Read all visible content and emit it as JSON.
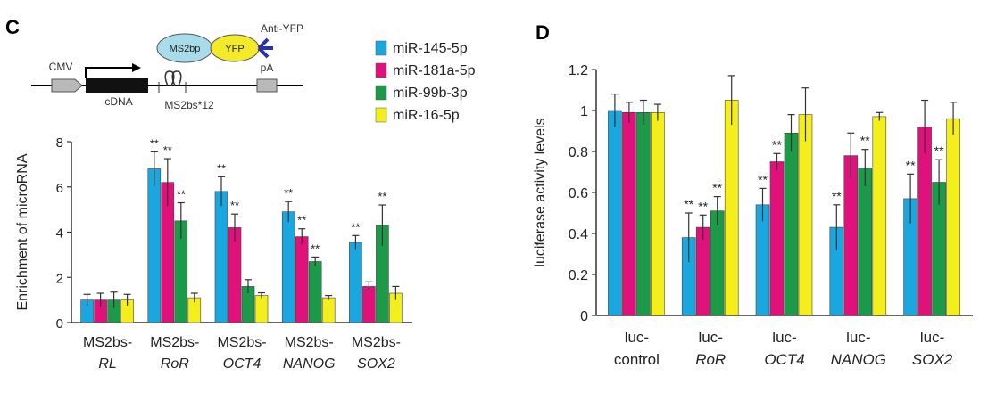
{
  "colors": {
    "series": [
      "#1aa7e0",
      "#e0117a",
      "#1c9a49",
      "#f4ef1a"
    ],
    "axis": "#333333"
  },
  "construct": {
    "cmv": "CMV",
    "cdna": "cDNA",
    "ms2bs": "MS2bs*12",
    "pa": "pA",
    "ms2bp": "MS2bp",
    "yfp": "YFP",
    "anti_yfp": "Anti-YFP"
  },
  "chart_data": [
    {
      "panel": "C",
      "type": "bar",
      "ylabel": "Enrichment of microRNA",
      "ylim": [
        0,
        8
      ],
      "yticks": [
        0,
        2,
        4,
        6,
        8
      ],
      "categories": [
        {
          "line1": "MS2bs-",
          "line2": "RL"
        },
        {
          "line1": "MS2bs-",
          "line2": "RoR"
        },
        {
          "line1": "MS2bs-",
          "line2": "OCT4"
        },
        {
          "line1": "MS2bs-",
          "line2": "NANOG"
        },
        {
          "line1": "MS2bs-",
          "line2": "SOX2"
        }
      ],
      "series": [
        {
          "name": "miR-145-5p",
          "values": [
            1.0,
            6.8,
            5.8,
            4.9,
            3.55
          ],
          "errors": [
            0.25,
            0.75,
            0.65,
            0.45,
            0.3
          ],
          "sig": [
            "",
            "**",
            "**",
            "**",
            "**"
          ]
        },
        {
          "name": "miR-181a-5p",
          "values": [
            1.0,
            6.2,
            4.2,
            3.8,
            1.6
          ],
          "errors": [
            0.3,
            1.05,
            0.6,
            0.35,
            0.2
          ],
          "sig": [
            "",
            "**",
            "**",
            "**",
            ""
          ]
        },
        {
          "name": "miR-99b-3p",
          "values": [
            1.0,
            4.5,
            1.6,
            2.7,
            4.3
          ],
          "errors": [
            0.35,
            0.8,
            0.3,
            0.2,
            0.9
          ],
          "sig": [
            "",
            "**",
            "",
            "**",
            "**"
          ]
        },
        {
          "name": "miR-16-5p",
          "values": [
            1.0,
            1.1,
            1.2,
            1.1,
            1.3
          ],
          "errors": [
            0.25,
            0.2,
            0.12,
            0.1,
            0.3
          ],
          "sig": [
            "",
            "",
            "",
            "",
            ""
          ]
        }
      ]
    },
    {
      "panel": "D",
      "type": "bar",
      "ylabel": "luciferase activity levels",
      "ylim": [
        0,
        1.2
      ],
      "yticks": [
        "0",
        "0.2",
        "0.4",
        "0.6",
        "0.8",
        "1",
        "1.2"
      ],
      "categories": [
        {
          "line1": "luc-",
          "line2": "control"
        },
        {
          "line1": "luc-",
          "line2": "RoR"
        },
        {
          "line1": "luc-",
          "line2": "OCT4"
        },
        {
          "line1": "luc-",
          "line2": "NANOG"
        },
        {
          "line1": "luc-",
          "line2": "SOX2"
        }
      ],
      "series": [
        {
          "name": "miR-145-5p",
          "values": [
            1.0,
            0.38,
            0.54,
            0.43,
            0.57
          ],
          "errors": [
            0.08,
            0.12,
            0.08,
            0.11,
            0.12
          ],
          "sig": [
            "",
            "**",
            "**",
            "**",
            "**"
          ]
        },
        {
          "name": "miR-181a-5p",
          "values": [
            0.99,
            0.43,
            0.75,
            0.78,
            0.92
          ],
          "errors": [
            0.05,
            0.06,
            0.04,
            0.11,
            0.13
          ],
          "sig": [
            "",
            "**",
            "**",
            "",
            ""
          ]
        },
        {
          "name": "miR-99b-3p",
          "values": [
            0.99,
            0.51,
            0.89,
            0.72,
            0.65
          ],
          "errors": [
            0.06,
            0.07,
            0.09,
            0.09,
            0.11
          ],
          "sig": [
            "",
            "**",
            "",
            "**",
            "**"
          ]
        },
        {
          "name": "miR-16-5p",
          "values": [
            0.99,
            1.05,
            0.98,
            0.97,
            0.96
          ],
          "errors": [
            0.04,
            0.12,
            0.13,
            0.02,
            0.08
          ],
          "sig": [
            "",
            "",
            "",
            "",
            ""
          ]
        }
      ]
    }
  ]
}
